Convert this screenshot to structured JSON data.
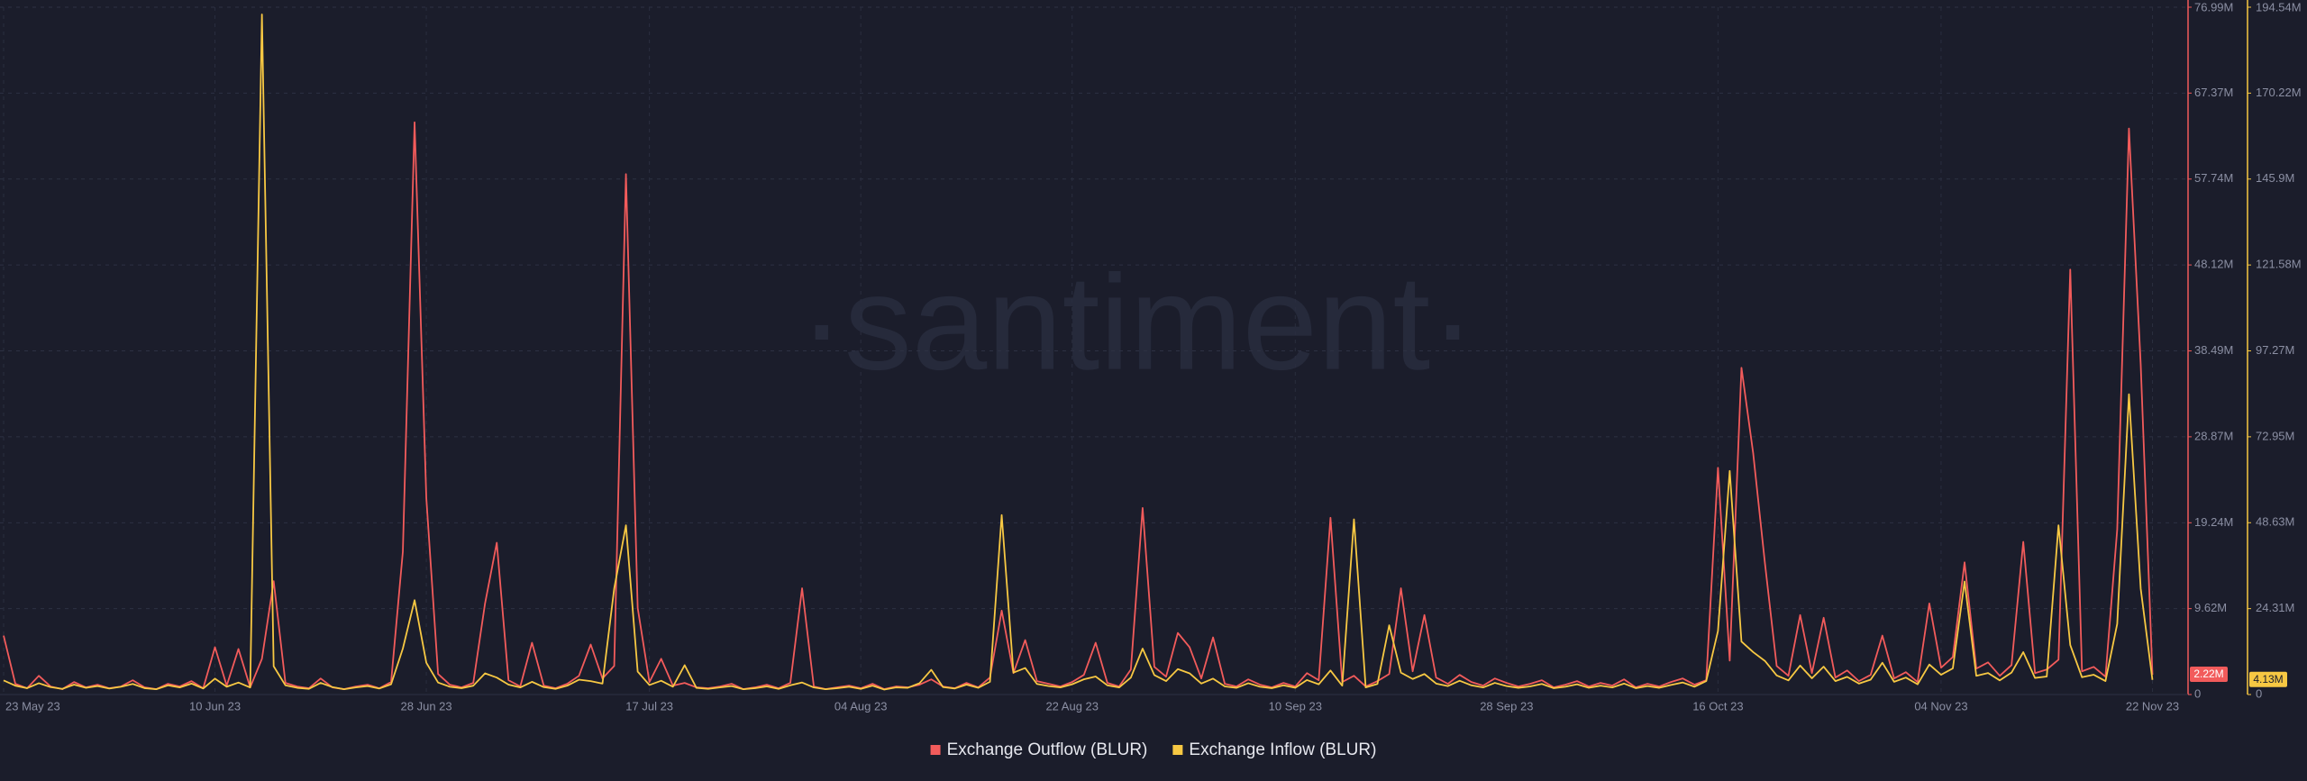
{
  "chart_data": {
    "type": "line",
    "watermark": "·santiment·",
    "x": [
      "23 May 23",
      "24 May 23",
      "25 May 23",
      "26 May 23",
      "27 May 23",
      "28 May 23",
      "29 May 23",
      "30 May 23",
      "31 May 23",
      "01 Jun 23",
      "02 Jun 23",
      "03 Jun 23",
      "04 Jun 23",
      "05 Jun 23",
      "06 Jun 23",
      "07 Jun 23",
      "08 Jun 23",
      "09 Jun 23",
      "10 Jun 23",
      "11 Jun 23",
      "12 Jun 23",
      "13 Jun 23",
      "14 Jun 23",
      "15 Jun 23",
      "16 Jun 23",
      "17 Jun 23",
      "18 Jun 23",
      "19 Jun 23",
      "20 Jun 23",
      "21 Jun 23",
      "22 Jun 23",
      "23 Jun 23",
      "24 Jun 23",
      "25 Jun 23",
      "26 Jun 23",
      "27 Jun 23",
      "28 Jun 23",
      "29 Jun 23",
      "30 Jun 23",
      "01 Jul 23",
      "02 Jul 23",
      "03 Jul 23",
      "04 Jul 23",
      "05 Jul 23",
      "06 Jul 23",
      "07 Jul 23",
      "08 Jul 23",
      "09 Jul 23",
      "10 Jul 23",
      "11 Jul 23",
      "12 Jul 23",
      "13 Jul 23",
      "14 Jul 23",
      "15 Jul 23",
      "16 Jul 23",
      "17 Jul 23",
      "18 Jul 23",
      "19 Jul 23",
      "20 Jul 23",
      "21 Jul 23",
      "22 Jul 23",
      "23 Jul 23",
      "24 Jul 23",
      "25 Jul 23",
      "26 Jul 23",
      "27 Jul 23",
      "28 Jul 23",
      "29 Jul 23",
      "30 Jul 23",
      "31 Jul 23",
      "01 Aug 23",
      "02 Aug 23",
      "03 Aug 23",
      "04 Aug 23",
      "05 Aug 23",
      "06 Aug 23",
      "07 Aug 23",
      "08 Aug 23",
      "09 Aug 23",
      "10 Aug 23",
      "11 Aug 23",
      "12 Aug 23",
      "13 Aug 23",
      "14 Aug 23",
      "15 Aug 23",
      "16 Aug 23",
      "17 Aug 23",
      "18 Aug 23",
      "19 Aug 23",
      "20 Aug 23",
      "21 Aug 23",
      "22 Aug 23",
      "23 Aug 23",
      "24 Aug 23",
      "25 Aug 23",
      "26 Aug 23",
      "27 Aug 23",
      "28 Aug 23",
      "29 Aug 23",
      "30 Aug 23",
      "31 Aug 23",
      "01 Sep 23",
      "02 Sep 23",
      "03 Sep 23",
      "04 Sep 23",
      "05 Sep 23",
      "06 Sep 23",
      "07 Sep 23",
      "08 Sep 23",
      "09 Sep 23",
      "10 Sep 23",
      "11 Sep 23",
      "12 Sep 23",
      "13 Sep 23",
      "14 Sep 23",
      "15 Sep 23",
      "16 Sep 23",
      "17 Sep 23",
      "18 Sep 23",
      "19 Sep 23",
      "20 Sep 23",
      "21 Sep 23",
      "22 Sep 23",
      "23 Sep 23",
      "24 Sep 23",
      "25 Sep 23",
      "26 Sep 23",
      "27 Sep 23",
      "28 Sep 23",
      "29 Sep 23",
      "30 Sep 23",
      "01 Oct 23",
      "02 Oct 23",
      "03 Oct 23",
      "04 Oct 23",
      "05 Oct 23",
      "06 Oct 23",
      "07 Oct 23",
      "08 Oct 23",
      "09 Oct 23",
      "10 Oct 23",
      "11 Oct 23",
      "12 Oct 23",
      "13 Oct 23",
      "14 Oct 23",
      "15 Oct 23",
      "16 Oct 23",
      "17 Oct 23",
      "18 Oct 23",
      "19 Oct 23",
      "20 Oct 23",
      "21 Oct 23",
      "22 Oct 23",
      "23 Oct 23",
      "24 Oct 23",
      "25 Oct 23",
      "26 Oct 23",
      "27 Oct 23",
      "28 Oct 23",
      "29 Oct 23",
      "30 Oct 23",
      "31 Oct 23",
      "01 Nov 23",
      "02 Nov 23",
      "03 Nov 23",
      "04 Nov 23",
      "05 Nov 23",
      "06 Nov 23",
      "07 Nov 23",
      "08 Nov 23",
      "09 Nov 23",
      "10 Nov 23",
      "11 Nov 23",
      "12 Nov 23",
      "13 Nov 23",
      "14 Nov 23",
      "15 Nov 23",
      "16 Nov 23",
      "17 Nov 23",
      "18 Nov 23",
      "19 Nov 23",
      "20 Nov 23",
      "21 Nov 23",
      "22 Nov 23"
    ],
    "xticks": [
      "23 May 23",
      "10 Jun 23",
      "28 Jun 23",
      "17 Jul 23",
      "04 Aug 23",
      "22 Aug 23",
      "10 Sep 23",
      "28 Sep 23",
      "16 Oct 23",
      "04 Nov 23",
      "22 Nov 23"
    ],
    "series": [
      {
        "name": "Exchange Outflow (BLUR)",
        "color": "#f25b5b",
        "axis": "y",
        "values": [
          6.6,
          1.2,
          0.7,
          2.1,
          0.9,
          0.6,
          1.4,
          0.8,
          1.1,
          0.7,
          0.9,
          1.6,
          0.8,
          0.6,
          1.2,
          0.9,
          1.5,
          0.7,
          5.3,
          1.0,
          5.1,
          0.8,
          4,
          12.7,
          1.3,
          0.9,
          0.7,
          1.8,
          0.8,
          0.6,
          0.9,
          1.1,
          0.7,
          1.4,
          16,
          64.1,
          22,
          2.3,
          1.1,
          0.8,
          1.3,
          10.2,
          17,
          1.6,
          0.9,
          5.8,
          1.0,
          0.7,
          1.2,
          2.1,
          5.6,
          1.8,
          3.2,
          58.3,
          9.7,
          1.4,
          4,
          1.0,
          1.3,
          0.8,
          0.7,
          0.9,
          1.2,
          0.6,
          0.8,
          1.1,
          0.7,
          1.3,
          11.9,
          0.9,
          0.6,
          0.8,
          1.0,
          0.7,
          1.2,
          0.6,
          0.9,
          0.8,
          1.1,
          1.7,
          0.9,
          0.7,
          1.3,
          0.8,
          1.9,
          9.4,
          2.4,
          6.1,
          1.5,
          1.2,
          0.9,
          1.4,
          2.2,
          5.8,
          1.3,
          0.9,
          2.8,
          20.9,
          3.1,
          2.0,
          6.9,
          5.3,
          1.8,
          6.4,
          1.2,
          0.9,
          1.7,
          1.1,
          0.8,
          1.3,
          0.9,
          2.4,
          1.6,
          19.8,
          1.4,
          2.1,
          0.9,
          1.5,
          2.3,
          11.9,
          2.6,
          8.9,
          1.9,
          1.2,
          2.2,
          1.4,
          1.0,
          1.8,
          1.3,
          0.9,
          1.2,
          1.6,
          0.8,
          1.1,
          1.5,
          0.9,
          1.3,
          1.0,
          1.7,
          0.8,
          1.2,
          0.9,
          1.4,
          1.8,
          1.1,
          1.6,
          25.4,
          3.8,
          36.6,
          27,
          14.7,
          3.2,
          2.1,
          8.9,
          2.4,
          8.6,
          1.9,
          2.7,
          1.5,
          2.2,
          6.6,
          1.8,
          2.5,
          1.4,
          10.2,
          3.0,
          4.2,
          14.8,
          2.9,
          3.6,
          2.1,
          3.3,
          17.1,
          2.4,
          2.8,
          3.9,
          47.6,
          2.6,
          3.1,
          2.0,
          18.5,
          63.4,
          37,
          2.22
        ],
        "last": {
          "value": 2.22,
          "label": "2.22M"
        }
      },
      {
        "name": "Exchange Inflow (BLUR)",
        "color": "#f7c843",
        "axis": "y2",
        "values": [
          4,
          2.5,
          1.8,
          3.2,
          2.1,
          1.6,
          2.8,
          1.9,
          2.4,
          1.7,
          2.2,
          3.0,
          1.8,
          1.5,
          2.6,
          2.0,
          3.1,
          1.7,
          4.5,
          2.2,
          3.4,
          2.0,
          192.5,
          8,
          2.6,
          1.9,
          1.6,
          3.3,
          2.1,
          1.5,
          2.0,
          2.4,
          1.7,
          2.9,
          13,
          26.7,
          9,
          3.4,
          2.2,
          1.8,
          2.5,
          6,
          4.8,
          2.8,
          2.0,
          3.6,
          2.1,
          1.6,
          2.5,
          4.2,
          3.8,
          3.1,
          30,
          47.9,
          6.5,
          2.7,
          3.9,
          2.2,
          8.3,
          1.9,
          1.6,
          2.0,
          2.4,
          1.5,
          1.8,
          2.3,
          1.6,
          2.6,
          3.4,
          2.0,
          1.5,
          1.8,
          2.2,
          1.6,
          2.5,
          1.4,
          2.0,
          1.9,
          3.2,
          7,
          2.1,
          1.7,
          2.8,
          1.9,
          3.6,
          50.8,
          6.2,
          7.5,
          3.0,
          2.4,
          2.0,
          2.9,
          4.3,
          5.1,
          2.6,
          2.0,
          4.8,
          13,
          5.5,
          3.8,
          7.2,
          6.0,
          3.1,
          4.5,
          2.3,
          1.9,
          3.2,
          2.2,
          1.8,
          2.6,
          1.9,
          4.1,
          2.9,
          6.8,
          2.5,
          49.6,
          2.0,
          3.0,
          19.6,
          6.2,
          4.4,
          5.8,
          3.1,
          2.4,
          3.9,
          2.6,
          2.0,
          3.3,
          2.4,
          1.9,
          2.3,
          3.0,
          1.8,
          2.2,
          2.9,
          1.9,
          2.5,
          2.0,
          3.1,
          1.8,
          2.4,
          1.9,
          2.7,
          3.4,
          2.2,
          3.8,
          18,
          63.3,
          15,
          12,
          9.5,
          5.4,
          4.0,
          8.2,
          4.6,
          7.9,
          3.8,
          5.0,
          3.1,
          4.2,
          9,
          3.6,
          4.8,
          2.9,
          8.5,
          5.6,
          7.4,
          32,
          5.3,
          6.1,
          4.0,
          6.2,
          12,
          4.7,
          5.1,
          47.9,
          14,
          4.9,
          5.6,
          3.8,
          20,
          85,
          30,
          4.13
        ],
        "last": {
          "value": 4.13,
          "label": "4.13M"
        }
      }
    ],
    "ylim": [
      0,
      76.99
    ],
    "yticks": [
      0,
      {
        "value": 9.62,
        "label": "9.62M"
      },
      {
        "value": 19.24,
        "label": "19.24M"
      },
      {
        "value": 28.87,
        "label": "28.87M"
      },
      {
        "value": 38.49,
        "label": "38.49M"
      },
      {
        "value": 48.12,
        "label": "48.12M"
      },
      {
        "value": 57.74,
        "label": "57.74M"
      },
      {
        "value": 67.37,
        "label": "67.37M"
      },
      {
        "value": 76.99,
        "label": "76.99M"
      }
    ],
    "y2lim": [
      0,
      194.54
    ],
    "y2ticks": [
      0,
      {
        "value": 24.31,
        "label": "24.31M"
      },
      {
        "value": 48.63,
        "label": "48.63M"
      },
      {
        "value": 72.95,
        "label": "72.95M"
      },
      {
        "value": 97.27,
        "label": "97.27M"
      },
      {
        "value": 121.58,
        "label": "121.58M"
      },
      {
        "value": 145.9,
        "label": "145.9M"
      },
      {
        "value": 170.22,
        "label": "170.22M"
      },
      {
        "value": 194.54,
        "label": "194.54M"
      }
    ],
    "grid": true,
    "legend": "bottom"
  }
}
